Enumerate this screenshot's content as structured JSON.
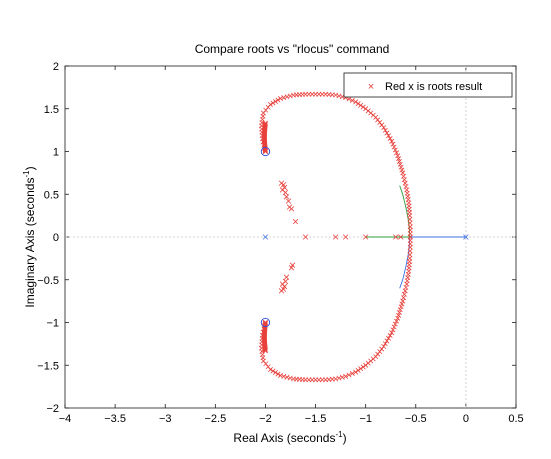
{
  "chart_data": {
    "type": "scatter",
    "title": "Compare roots vs \"rlocus\" command",
    "xlabel": {
      "prefix": "Real Axis (seconds",
      "sup": "-1",
      "suffix": ")"
    },
    "ylabel": {
      "prefix": "Imaginary Axis (seconds",
      "sup": "-1",
      "suffix": ")"
    },
    "xlim": [
      -4,
      0.5
    ],
    "ylim": [
      -2,
      2
    ],
    "xticks": [
      -4,
      -3.5,
      -3,
      -2.5,
      -2,
      -1.5,
      -1,
      -0.5,
      0,
      0.5
    ],
    "yticks": [
      -2,
      -1.5,
      -1,
      -0.5,
      0,
      0.5,
      1,
      1.5,
      2
    ],
    "grid": false,
    "legend": {
      "position": "top-right",
      "entries": [
        "Red x is roots result"
      ]
    },
    "colors": {
      "roots": "#e8403c",
      "locus_blue": "#3d6fe0",
      "locus_green": "#2e9e3e",
      "zero": "#2b4bd6",
      "pole": "#3d6fe0",
      "zero_line": "#c8c8c8"
    },
    "poles": [
      [
        -2,
        0
      ],
      [
        0,
        0
      ]
    ],
    "zeros": [
      [
        -2,
        1
      ],
      [
        -2,
        -1
      ]
    ],
    "rlocus_branches": [
      {
        "color": "blue",
        "points": [
          [
            0,
            0
          ],
          [
            -0.56,
            0
          ]
        ]
      },
      {
        "color": "green",
        "points": [
          [
            -0.56,
            0
          ],
          [
            -1.0,
            0
          ]
        ]
      },
      {
        "color": "green",
        "points": [
          [
            -0.56,
            0
          ],
          [
            -0.565,
            0.1
          ],
          [
            -0.575,
            0.2
          ],
          [
            -0.6,
            0.35
          ],
          [
            -0.63,
            0.5
          ],
          [
            -0.66,
            0.6
          ]
        ]
      },
      {
        "color": "blue",
        "points": [
          [
            -0.56,
            0
          ],
          [
            -0.565,
            -0.1
          ],
          [
            -0.575,
            -0.2
          ],
          [
            -0.6,
            -0.35
          ],
          [
            -0.63,
            -0.5
          ],
          [
            -0.66,
            -0.6
          ]
        ]
      }
    ],
    "roots_series": {
      "name": "Red x is roots result",
      "arc_points": [
        [
          -2.0,
          1.0
        ],
        [
          -2.03,
          1.15
        ],
        [
          -2.04,
          1.3
        ],
        [
          -2.02,
          1.45
        ],
        [
          -1.95,
          1.55
        ],
        [
          -1.85,
          1.62
        ],
        [
          -1.72,
          1.66
        ],
        [
          -1.6,
          1.67
        ],
        [
          -1.5,
          1.67
        ],
        [
          -1.4,
          1.67
        ],
        [
          -1.3,
          1.66
        ],
        [
          -1.2,
          1.63
        ],
        [
          -1.1,
          1.58
        ],
        [
          -1.0,
          1.5
        ],
        [
          -0.9,
          1.4
        ],
        [
          -0.82,
          1.28
        ],
        [
          -0.74,
          1.12
        ],
        [
          -0.68,
          0.95
        ],
        [
          -0.63,
          0.75
        ],
        [
          -0.59,
          0.55
        ],
        [
          -0.57,
          0.4
        ],
        [
          -0.56,
          0.25
        ],
        [
          -0.555,
          0.12
        ],
        [
          -0.555,
          0.0
        ]
      ],
      "extra_points": [
        [
          -1.84,
          0.63
        ],
        [
          -1.82,
          0.61
        ],
        [
          -1.81,
          0.58
        ],
        [
          -1.83,
          0.55
        ],
        [
          -1.8,
          0.52
        ],
        [
          -1.79,
          0.47
        ],
        [
          -1.77,
          0.42
        ],
        [
          -1.76,
          0.35
        ],
        [
          -1.74,
          0.33
        ],
        [
          -1.7,
          0.18
        ],
        [
          -1.84,
          -0.63
        ],
        [
          -1.82,
          -0.61
        ],
        [
          -1.81,
          -0.58
        ],
        [
          -1.83,
          -0.55
        ],
        [
          -1.8,
          -0.52
        ],
        [
          -1.79,
          -0.47
        ],
        [
          -1.74,
          -0.36
        ],
        [
          -1.73,
          -0.33
        ],
        [
          -1.6,
          0
        ],
        [
          -1.3,
          0
        ],
        [
          -1.2,
          0
        ],
        [
          -1.0,
          0
        ],
        [
          -0.7,
          0
        ],
        [
          -0.65,
          0
        ]
      ]
    }
  }
}
